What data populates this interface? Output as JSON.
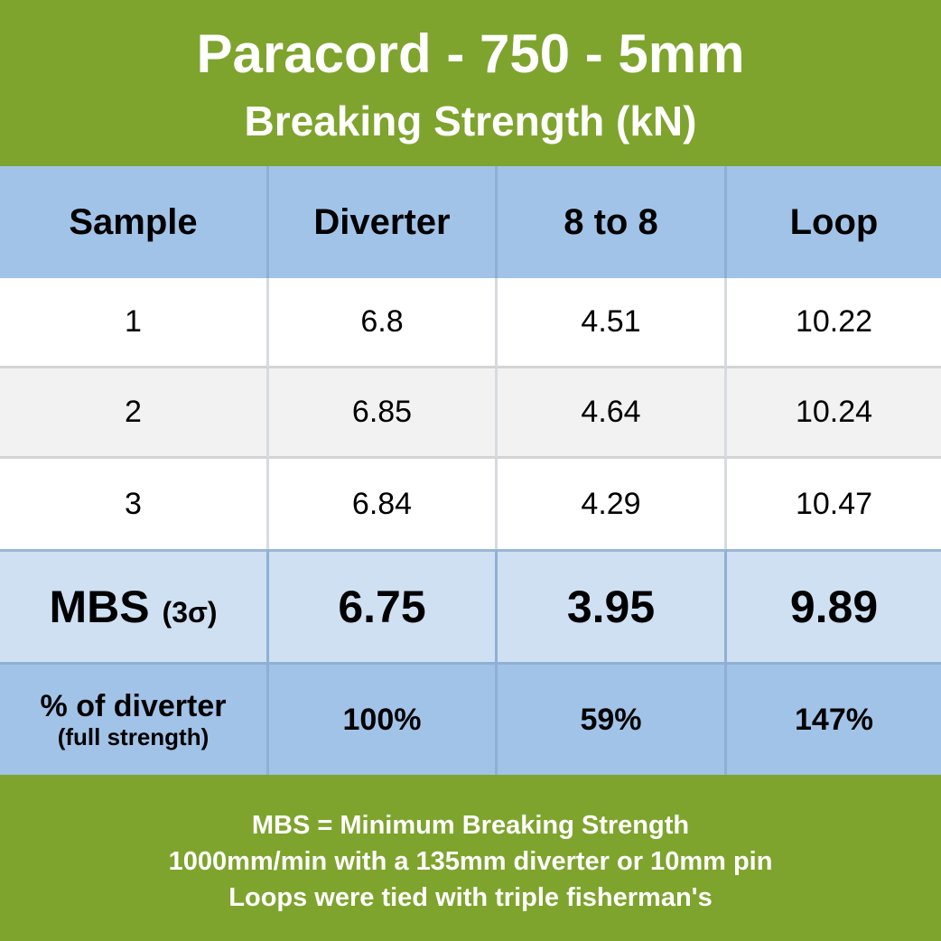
{
  "header": {
    "title": "Paracord - 750 - 5mm",
    "subtitle": "Breaking Strength (kN)"
  },
  "table": {
    "columns": [
      "Sample",
      "Diverter",
      "8 to 8",
      "Loop"
    ],
    "rows": [
      [
        "1",
        "6.8",
        "4.51",
        "10.22"
      ],
      [
        "2",
        "6.85",
        "4.64",
        "10.24"
      ],
      [
        "3",
        "6.84",
        "4.29",
        "10.47"
      ]
    ],
    "mbs": {
      "label": "MBS",
      "label_suffix": "(3σ)",
      "values": [
        "6.75",
        "3.95",
        "9.89"
      ]
    },
    "percent": {
      "label": "% of diverter",
      "sublabel": "(full strength)",
      "values": [
        "100%",
        "59%",
        "147%"
      ]
    }
  },
  "footer": {
    "lines": [
      "MBS = Minimum Breaking Strength",
      "1000mm/min with a 135mm diverter or 10mm pin",
      "Loops were tied with triple fisherman's"
    ]
  },
  "colors": {
    "header_bg": "#7ea42d",
    "table_header_bg": "#a1c3e8",
    "mbs_row_bg": "#cfe0f3",
    "alt_row_bg": "#f2f2f2"
  }
}
